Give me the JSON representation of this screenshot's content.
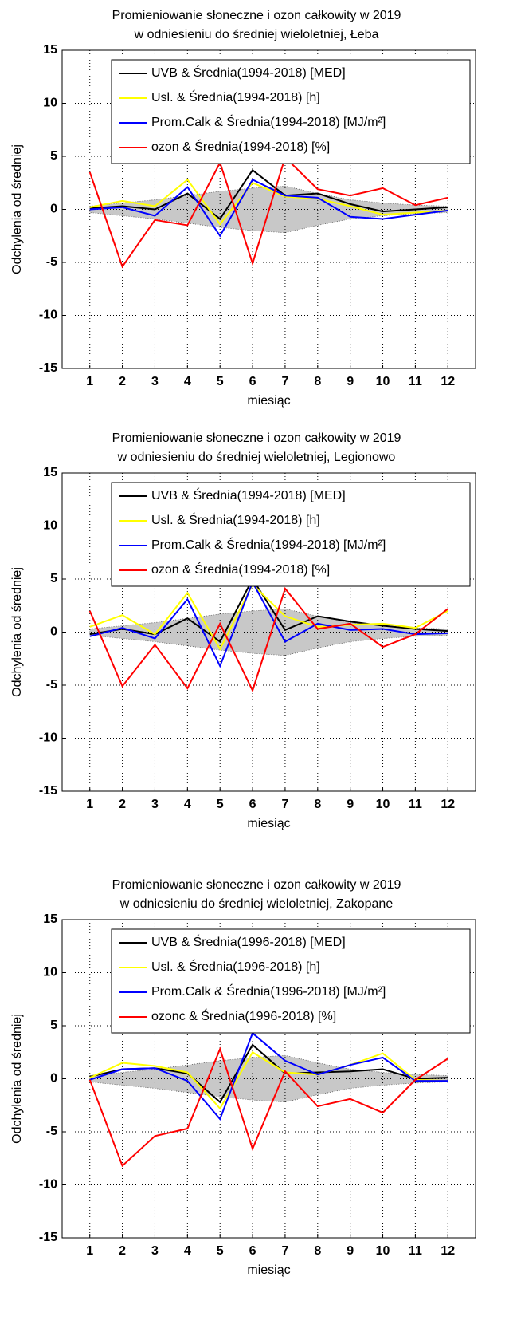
{
  "chart_data": [
    {
      "type": "line",
      "title": "Promieniowanie słoneczne i ozon całkowity w 2019",
      "subtitle": "w odniesieniu do średniej wieloletniej, Łeba",
      "xlabel": "miesiąc",
      "ylabel": "Odchylenia od średniej",
      "x": [
        1,
        2,
        3,
        4,
        5,
        6,
        7,
        8,
        9,
        10,
        11,
        12
      ],
      "xlim": [
        0.15,
        12.85
      ],
      "xticks": [
        1,
        2,
        3,
        4,
        5,
        6,
        7,
        8,
        9,
        10,
        11,
        12
      ],
      "ylim": [
        -15,
        15
      ],
      "yticks": [
        -15,
        -10,
        -5,
        0,
        5,
        10,
        15
      ],
      "grid": true,
      "legend": "upper left",
      "band": [
        0.3,
        0.6,
        0.9,
        1.3,
        1.7,
        2.0,
        2.2,
        1.5,
        0.9,
        0.6,
        0.4,
        0.3
      ],
      "band_color": "#c8c8c8",
      "series": [
        {
          "name": "UVB & Średnia(1994-2018) [MED]",
          "color": "#000000",
          "values": [
            0.1,
            0.3,
            0,
            1.5,
            -0.9,
            3.7,
            1.3,
            1.5,
            0.5,
            -0.2,
            0,
            0.2
          ]
        },
        {
          "name": "Usl. & Średnia(1994-2018) [h]",
          "color": "#ffff00",
          "values": [
            0.2,
            0.8,
            0.3,
            2.8,
            -1.4,
            2.5,
            1.2,
            1.0,
            0.3,
            -0.5,
            -0.3,
            -0.1
          ]
        },
        {
          "name": "Prom.Calk & Średnia(1994-2018) [MJ/m²]",
          "color": "#0000ff",
          "values": [
            0,
            0.2,
            -0.6,
            2.1,
            -2.5,
            2.8,
            1.3,
            1.1,
            -0.7,
            -0.9,
            -0.5,
            -0.1
          ]
        },
        {
          "name": "ozon & Średnia(1994-2018) [%]",
          "color": "#ff0000",
          "values": [
            3.5,
            -5.4,
            -1.0,
            -1.5,
            4.4,
            -5.1,
            4.9,
            1.9,
            1.3,
            2.0,
            0.4,
            1.1
          ]
        }
      ]
    },
    {
      "type": "line",
      "title": "Promieniowanie słoneczne i ozon całkowity w 2019",
      "subtitle": "w odniesieniu do średniej wieloletniej, Legionowo",
      "xlabel": "miesiąc",
      "ylabel": "Odchylenia od średniej",
      "x": [
        1,
        2,
        3,
        4,
        5,
        6,
        7,
        8,
        9,
        10,
        11,
        12
      ],
      "xlim": [
        0.15,
        12.85
      ],
      "xticks": [
        1,
        2,
        3,
        4,
        5,
        6,
        7,
        8,
        9,
        10,
        11,
        12
      ],
      "ylim": [
        -15,
        15
      ],
      "yticks": [
        -15,
        -10,
        -5,
        0,
        5,
        10,
        15
      ],
      "grid": true,
      "legend": "upper left",
      "band": [
        0.3,
        0.6,
        0.9,
        1.3,
        1.7,
        2.0,
        2.2,
        1.5,
        0.9,
        0.6,
        0.4,
        0.3
      ],
      "band_color": "#c8c8c8",
      "series": [
        {
          "name": "UVB & Średnia(1994-2018) [MED]",
          "color": "#000000",
          "values": [
            -0.2,
            0.3,
            -0.2,
            1.3,
            -0.9,
            5.0,
            0.2,
            1.5,
            1.0,
            0.6,
            0.3,
            0.1
          ]
        },
        {
          "name": "Usl. & Średnia(1994-2018) [h]",
          "color": "#ffff00",
          "values": [
            0.5,
            1.6,
            -0.2,
            3.7,
            -1.6,
            4.5,
            1.5,
            0.5,
            0.7,
            0.8,
            0.4,
            2.0
          ]
        },
        {
          "name": "Prom.Calk & Średnia(1994-2018) [MJ/m²]",
          "color": "#0000ff",
          "values": [
            -0.4,
            0.4,
            -0.6,
            3.1,
            -3.2,
            4.7,
            -0.9,
            0.8,
            0.2,
            0.3,
            -0.2,
            -0.1
          ]
        },
        {
          "name": "ozon & Średnia(1994-2018) [%]",
          "color": "#ff0000",
          "values": [
            2.0,
            -5.1,
            -1.2,
            -5.3,
            0.8,
            -5.5,
            4.1,
            0.3,
            0.8,
            -1.4,
            -0.2,
            2.2
          ]
        }
      ]
    },
    {
      "type": "line",
      "title": "Promieniowanie słoneczne i ozon całkowity w 2019",
      "subtitle": "w odniesieniu do średniej wieloletniej, Zakopane",
      "xlabel": "miesiąc",
      "ylabel": "Odchylenia od średniej",
      "x": [
        1,
        2,
        3,
        4,
        5,
        6,
        7,
        8,
        9,
        10,
        11,
        12
      ],
      "xlim": [
        0.15,
        12.85
      ],
      "xticks": [
        1,
        2,
        3,
        4,
        5,
        6,
        7,
        8,
        9,
        10,
        11,
        12
      ],
      "ylim": [
        -15,
        15
      ],
      "yticks": [
        -15,
        -10,
        -5,
        0,
        5,
        10,
        15
      ],
      "grid": true,
      "legend": "upper left",
      "band": [
        0.3,
        0.6,
        0.9,
        1.3,
        1.7,
        2.0,
        2.2,
        1.5,
        0.9,
        0.6,
        0.4,
        0.3
      ],
      "band_color": "#c8c8c8",
      "series": [
        {
          "name": "UVB & Średnia(1996-2018) [MED]",
          "color": "#000000",
          "values": [
            0.2,
            0.9,
            1.0,
            0.5,
            -2.2,
            3.2,
            0.5,
            0.6,
            0.7,
            0.9,
            0.0,
            0.1
          ]
        },
        {
          "name": "Usl. & Średnia(1996-2018) [h]",
          "color": "#ffff00",
          "values": [
            0.1,
            1.5,
            1.2,
            0.6,
            -2.8,
            2.5,
            0.6,
            0.4,
            1.3,
            2.4,
            -0.1,
            -0.2
          ]
        },
        {
          "name": "Prom.Calk & Średnia(1996-2018) [MJ/m²]",
          "color": "#0000ff",
          "values": [
            -0.1,
            0.9,
            1.0,
            -0.2,
            -3.8,
            4.3,
            1.7,
            0.4,
            1.3,
            2.0,
            -0.2,
            -0.2
          ]
        },
        {
          "name": "ozonc & Średnia(1996-2018) [%]",
          "color": "#ff0000",
          "values": [
            -0.1,
            -8.2,
            -5.4,
            -4.7,
            2.8,
            -6.6,
            0.7,
            -2.6,
            -1.9,
            -3.2,
            -0.1,
            1.9
          ]
        }
      ]
    }
  ]
}
